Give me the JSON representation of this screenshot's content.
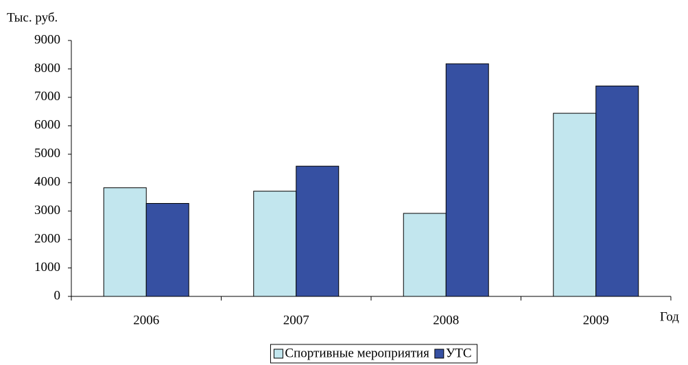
{
  "chart_data": {
    "type": "bar",
    "y_label": "Тыс. руб.",
    "x_label": "Год",
    "categories": [
      "2006",
      "2007",
      "2008",
      "2009"
    ],
    "series": [
      {
        "name": "Спортивные мероприятия",
        "color": "#c2e6ee",
        "values": [
          3820,
          3700,
          2920,
          6440
        ]
      },
      {
        "name": "УТС",
        "color": "#3650a2",
        "values": [
          3270,
          4580,
          8180,
          7400
        ]
      }
    ],
    "ylim": [
      0,
      9000
    ],
    "yticks": [
      0,
      1000,
      2000,
      3000,
      4000,
      5000,
      6000,
      7000,
      8000,
      9000
    ],
    "grid": false,
    "legend": "bottom"
  }
}
